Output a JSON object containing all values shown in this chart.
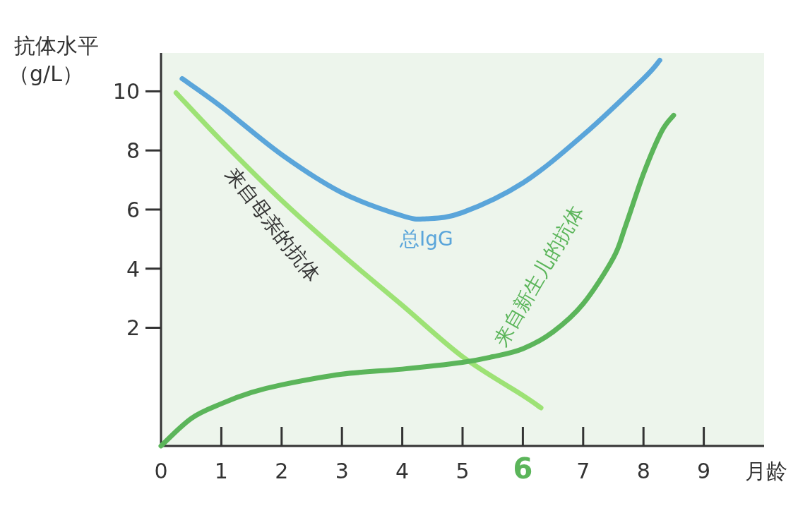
{
  "chart_data": {
    "type": "line",
    "xlabel": "月龄",
    "ylabel": "抗体水平（g/L）",
    "xlim": [
      0,
      10
    ],
    "ylim": [
      -2,
      11.3
    ],
    "xticks": [
      0,
      1,
      2,
      3,
      4,
      5,
      {
        "value": 6,
        "label": "6"
      },
      7,
      8,
      9
    ],
    "yticks": [
      2,
      4,
      6,
      8,
      10
    ],
    "grid": false,
    "legend": false,
    "marker": "none",
    "line_style": "solid",
    "series": [
      {
        "name": "总IgG",
        "color": "#5aa5da",
        "x": [
          0.35,
          1,
          2,
          3,
          4,
          4.4,
          5,
          6,
          7,
          8,
          8.27
        ],
        "values": [
          10.43,
          9.48,
          7.86,
          6.57,
          5.79,
          5.69,
          5.9,
          6.9,
          8.52,
          10.43,
          11.05
        ]
      },
      {
        "name": "来自母亲的抗体",
        "color": "#9de275",
        "x": [
          0.25,
          1,
          2,
          3,
          4,
          5,
          6,
          6.3
        ],
        "values": [
          9.95,
          8.33,
          6.31,
          4.48,
          2.76,
          1.02,
          -0.29,
          -0.71
        ]
      },
      {
        "name": "来自新生儿的抗体",
        "color": "#5bb55a",
        "x": [
          0,
          0.5,
          1,
          1.5,
          2,
          3,
          4,
          5,
          5.5,
          6,
          6.5,
          7,
          7.5,
          7.7,
          8,
          8.3,
          8.5
        ],
        "values": [
          -2,
          -1.07,
          -0.57,
          -0.19,
          0.07,
          0.43,
          0.6,
          0.83,
          1.02,
          1.29,
          1.86,
          2.81,
          4.36,
          5.43,
          7.21,
          8.64,
          9.19
        ]
      }
    ]
  }
}
